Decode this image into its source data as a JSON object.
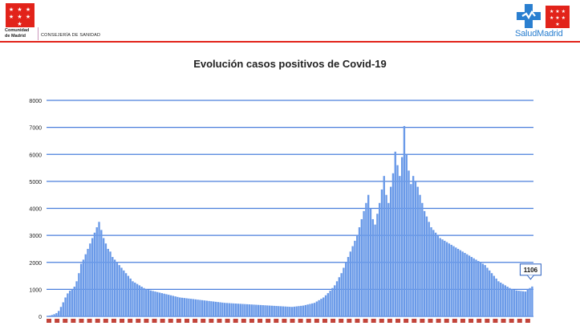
{
  "header": {
    "left_logo_stars": "★ ★ ★\n★ ★ ★\n★",
    "left_org_line1": "Comunidad",
    "left_org_line2": "de Madrid",
    "department": "CONSEJERÍA DE SANIDAD",
    "right_logo_text": "SaludMadrid"
  },
  "chart_data": {
    "type": "bar",
    "title": "Evolución casos positivos de Covid-19",
    "xlabel": "",
    "ylabel": "",
    "ylim": [
      0,
      8000
    ],
    "yticks": [
      0,
      1000,
      2000,
      3000,
      4000,
      5000,
      6000,
      7000,
      8000
    ],
    "grid": true,
    "bar_color": "#6a9ae8",
    "grid_color": "#4a7fdc",
    "series": [
      {
        "values": [
          20,
          30,
          50,
          80,
          120,
          200,
          350,
          520,
          700,
          850,
          950,
          1000,
          1100,
          1300,
          1600,
          1950,
          2100,
          2300,
          2500,
          2700,
          2900,
          3100,
          3300,
          3500,
          3200,
          2900,
          2700,
          2500,
          2400,
          2200,
          2100,
          2000,
          1900,
          1800,
          1700,
          1600,
          1500,
          1400,
          1300,
          1250,
          1200,
          1150,
          1100,
          1050,
          1000,
          980,
          960,
          940,
          920,
          900,
          880,
          860,
          840,
          820,
          800,
          780,
          760,
          740,
          720,
          700,
          690,
          680,
          670,
          660,
          650,
          640,
          630,
          620,
          610,
          600,
          590,
          580,
          570,
          560,
          550,
          540,
          530,
          520,
          510,
          500,
          495,
          490,
          485,
          480,
          475,
          470,
          465,
          460,
          455,
          450,
          445,
          440,
          435,
          430,
          425,
          420,
          415,
          410,
          405,
          400,
          395,
          390,
          385,
          380,
          375,
          370,
          365,
          360,
          355,
          350,
          360,
          370,
          380,
          390,
          400,
          420,
          440,
          460,
          480,
          500,
          550,
          600,
          650,
          700,
          780,
          860,
          950,
          1050,
          1150,
          1300,
          1450,
          1600,
          1800,
          2000,
          2200,
          2400,
          2600,
          2800,
          3000,
          3300,
          3600,
          3900,
          4200,
          4500,
          4000,
          3600,
          3400,
          3800,
          4200,
          4700,
          5200,
          4500,
          4200,
          4800,
          5300,
          6100,
          5600,
          5200,
          5900,
          7050,
          6000,
          5400,
          4900,
          5200,
          5000,
          4800,
          4500,
          4200,
          3900,
          3700,
          3500,
          3300,
          3200,
          3100,
          3000,
          2900,
          2850,
          2800,
          2750,
          2700,
          2650,
          2600,
          2550,
          2500,
          2450,
          2400,
          2350,
          2300,
          2250,
          2200,
          2150,
          2100,
          2050,
          2000,
          1950,
          1900,
          1800,
          1700,
          1600,
          1500,
          1400,
          1300,
          1250,
          1200,
          1150,
          1100,
          1050,
          1000,
          980,
          960,
          950,
          940,
          930,
          920,
          1000,
          1050,
          1106
        ]
      }
    ],
    "last_value_label": "1106"
  }
}
